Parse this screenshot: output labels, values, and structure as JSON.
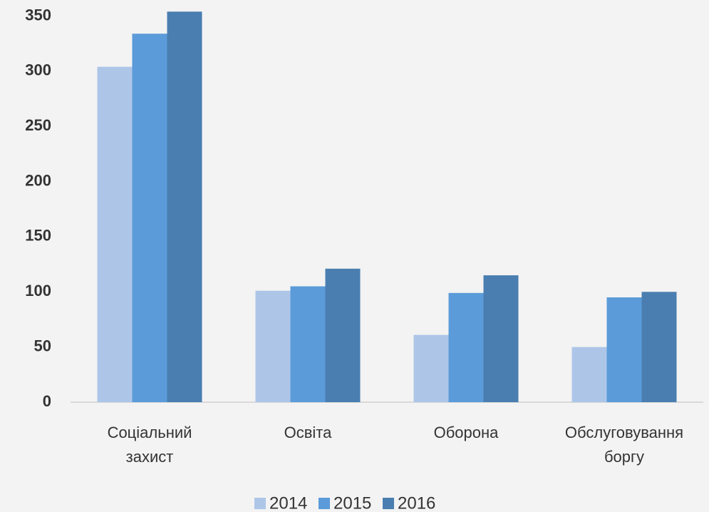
{
  "chart_data": {
    "type": "bar",
    "categories": [
      "Соціальний захист",
      "Освіта",
      "Оборона",
      "Обслуговування боргу"
    ],
    "series": [
      {
        "name": "2014",
        "color": "#adc6e8",
        "values": [
          304,
          101,
          61,
          50
        ]
      },
      {
        "name": "2015",
        "color": "#5b9bd9",
        "values": [
          334,
          105,
          99,
          95
        ]
      },
      {
        "name": "2016",
        "color": "#4a7eb0",
        "values": [
          354,
          121,
          115,
          100
        ]
      }
    ],
    "ylim": [
      0,
      360
    ],
    "yticks": [
      0,
      50,
      100,
      150,
      200,
      250,
      300,
      350
    ],
    "grid": false,
    "legend": "bottom"
  }
}
